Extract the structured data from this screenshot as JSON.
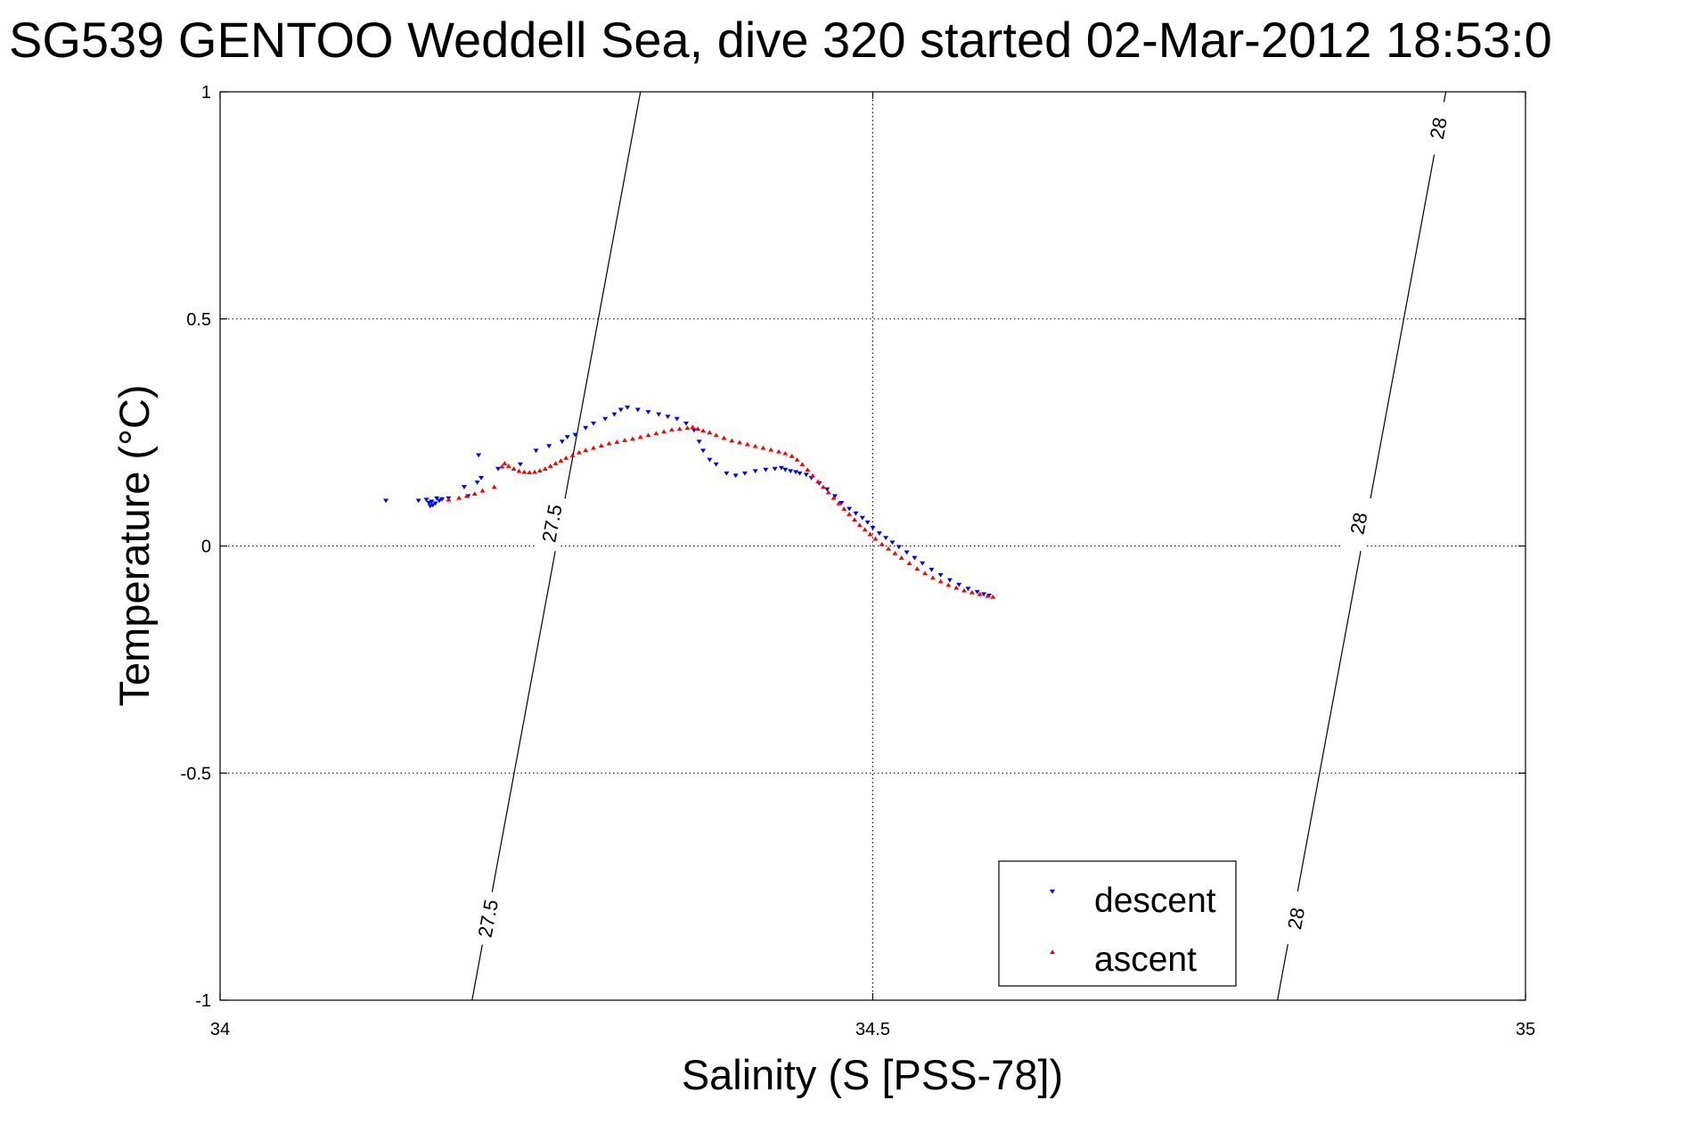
{
  "chart_data": {
    "type": "scatter",
    "title": "SG539 GENTOO Weddell Sea, dive 320 started 02-Mar-2012 18:53:0",
    "xlabel": "Salinity (S [PSS-78])",
    "ylabel": "Temperature (°C)",
    "xlim": [
      34,
      35
    ],
    "ylim": [
      -1,
      1
    ],
    "xticks": [
      34,
      34.5,
      35
    ],
    "xtick_labels": [
      "34",
      "34.5",
      "35"
    ],
    "yticks": [
      -1,
      -0.5,
      0,
      0.5,
      1
    ],
    "ytick_labels": [
      "-1",
      "-0.5",
      "0",
      "0.5",
      "1"
    ],
    "grid": true,
    "legend_position": "bottom-right",
    "colors": {
      "descent": "#0000ff",
      "ascent": "#ff0000",
      "contour": "#000000"
    },
    "series": [
      {
        "name": "descent",
        "marker": "triangle-down",
        "points": [
          [
            34.127,
            0.1
          ],
          [
            34.152,
            0.1
          ],
          [
            34.158,
            0.102
          ],
          [
            34.16,
            0.095
          ],
          [
            34.162,
            0.098
          ],
          [
            34.163,
            0.09
          ],
          [
            34.165,
            0.094
          ],
          [
            34.166,
            0.105
          ],
          [
            34.168,
            0.1
          ],
          [
            34.161,
            0.088
          ],
          [
            34.17,
            0.103
          ],
          [
            34.175,
            0.105
          ],
          [
            34.19,
            0.11
          ],
          [
            34.187,
            0.13
          ],
          [
            34.197,
            0.14
          ],
          [
            34.2,
            0.15
          ],
          [
            34.198,
            0.2
          ],
          [
            34.213,
            0.17
          ],
          [
            34.23,
            0.18
          ],
          [
            34.242,
            0.21
          ],
          [
            34.252,
            0.22
          ],
          [
            34.262,
            0.23
          ],
          [
            34.266,
            0.24
          ],
          [
            34.272,
            0.245
          ],
          [
            34.28,
            0.26
          ],
          [
            34.286,
            0.27
          ],
          [
            34.295,
            0.28
          ],
          [
            34.302,
            0.29
          ],
          [
            34.307,
            0.3
          ],
          [
            34.312,
            0.305
          ],
          [
            34.32,
            0.3
          ],
          [
            34.328,
            0.295
          ],
          [
            34.336,
            0.29
          ],
          [
            34.343,
            0.285
          ],
          [
            34.35,
            0.28
          ],
          [
            34.357,
            0.27
          ],
          [
            34.363,
            0.255
          ],
          [
            34.367,
            0.23
          ],
          [
            34.37,
            0.21
          ],
          [
            34.375,
            0.19
          ],
          [
            34.38,
            0.18
          ],
          [
            34.388,
            0.16
          ],
          [
            34.395,
            0.155
          ],
          [
            34.402,
            0.16
          ],
          [
            34.41,
            0.165
          ],
          [
            34.418,
            0.168
          ],
          [
            34.425,
            0.17
          ],
          [
            34.43,
            0.172
          ],
          [
            34.433,
            0.168
          ],
          [
            34.437,
            0.165
          ],
          [
            34.441,
            0.163
          ],
          [
            34.444,
            0.16
          ],
          [
            34.449,
            0.157
          ],
          [
            34.453,
            0.15
          ],
          [
            34.459,
            0.138
          ],
          [
            34.465,
            0.125
          ],
          [
            34.471,
            0.11
          ],
          [
            34.476,
            0.095
          ],
          [
            34.482,
            0.082
          ],
          [
            34.487,
            0.072
          ],
          [
            34.492,
            0.062
          ],
          [
            34.496,
            0.052
          ],
          [
            34.5,
            0.04
          ],
          [
            34.505,
            0.028
          ],
          [
            34.51,
            0.018
          ],
          [
            34.515,
            0.008
          ],
          [
            34.52,
            -0.002
          ],
          [
            34.526,
            -0.014
          ],
          [
            34.532,
            -0.026
          ],
          [
            34.538,
            -0.038
          ],
          [
            34.545,
            -0.052
          ],
          [
            34.552,
            -0.064
          ],
          [
            34.559,
            -0.075
          ],
          [
            34.566,
            -0.085
          ],
          [
            34.573,
            -0.094
          ],
          [
            34.58,
            -0.101
          ],
          [
            34.585,
            -0.106
          ],
          [
            34.589,
            -0.109
          ]
        ]
      },
      {
        "name": "ascent",
        "marker": "triangle-up",
        "points": [
          [
            34.175,
            0.102
          ],
          [
            34.183,
            0.106
          ],
          [
            34.189,
            0.11
          ],
          [
            34.195,
            0.115
          ],
          [
            34.201,
            0.122
          ],
          [
            34.21,
            0.13
          ],
          [
            34.216,
            0.175
          ],
          [
            34.218,
            0.182
          ],
          [
            34.221,
            0.176
          ],
          [
            34.225,
            0.17
          ],
          [
            34.229,
            0.165
          ],
          [
            34.233,
            0.163
          ],
          [
            34.237,
            0.162
          ],
          [
            34.241,
            0.163
          ],
          [
            34.245,
            0.166
          ],
          [
            34.249,
            0.17
          ],
          [
            34.253,
            0.176
          ],
          [
            34.257,
            0.182
          ],
          [
            34.261,
            0.188
          ],
          [
            34.265,
            0.194
          ],
          [
            34.27,
            0.2
          ],
          [
            34.275,
            0.206
          ],
          [
            34.28,
            0.211
          ],
          [
            34.286,
            0.216
          ],
          [
            34.292,
            0.221
          ],
          [
            34.298,
            0.226
          ],
          [
            34.304,
            0.229
          ],
          [
            34.31,
            0.233
          ],
          [
            34.316,
            0.236
          ],
          [
            34.322,
            0.24
          ],
          [
            34.328,
            0.244
          ],
          [
            34.334,
            0.248
          ],
          [
            34.34,
            0.252
          ],
          [
            34.346,
            0.256
          ],
          [
            34.352,
            0.258
          ],
          [
            34.358,
            0.26
          ],
          [
            34.362,
            0.262
          ],
          [
            34.366,
            0.258
          ],
          [
            34.37,
            0.254
          ],
          [
            34.375,
            0.25
          ],
          [
            34.38,
            0.244
          ],
          [
            34.386,
            0.238
          ],
          [
            34.392,
            0.232
          ],
          [
            34.398,
            0.228
          ],
          [
            34.404,
            0.224
          ],
          [
            34.41,
            0.22
          ],
          [
            34.416,
            0.216
          ],
          [
            34.422,
            0.212
          ],
          [
            34.428,
            0.208
          ],
          [
            34.433,
            0.204
          ],
          [
            34.438,
            0.198
          ],
          [
            34.442,
            0.19
          ],
          [
            34.446,
            0.18
          ],
          [
            34.45,
            0.168
          ],
          [
            34.454,
            0.155
          ],
          [
            34.458,
            0.142
          ],
          [
            34.462,
            0.13
          ],
          [
            34.466,
            0.118
          ],
          [
            34.47,
            0.106
          ],
          [
            34.474,
            0.094
          ],
          [
            34.478,
            0.082
          ],
          [
            34.482,
            0.07
          ],
          [
            34.486,
            0.058
          ],
          [
            34.49,
            0.046
          ],
          [
            34.494,
            0.036
          ],
          [
            34.498,
            0.026
          ],
          [
            34.502,
            0.016
          ],
          [
            34.507,
            0.004
          ],
          [
            34.512,
            -0.006
          ],
          [
            34.517,
            -0.016
          ],
          [
            34.522,
            -0.026
          ],
          [
            34.528,
            -0.038
          ],
          [
            34.534,
            -0.05
          ],
          [
            34.54,
            -0.06
          ],
          [
            34.546,
            -0.07
          ],
          [
            34.552,
            -0.078
          ],
          [
            34.558,
            -0.086
          ],
          [
            34.564,
            -0.092
          ],
          [
            34.57,
            -0.098
          ],
          [
            34.576,
            -0.102
          ],
          [
            34.582,
            -0.106
          ],
          [
            34.588,
            -0.11
          ],
          [
            34.592,
            -0.112
          ]
        ]
      }
    ],
    "contours": [
      {
        "level": 27.5,
        "label": "27.5",
        "points": [
          [
            34.193,
            -1.0
          ],
          [
            34.322,
            1.0
          ]
        ],
        "label_positions": [
          [
            34.205,
            -0.82
          ],
          [
            34.254,
            0.05
          ]
        ]
      },
      {
        "level": 28,
        "label": "28",
        "points": [
          [
            34.81,
            -1.0
          ],
          [
            34.939,
            1.0
          ]
        ],
        "label_positions": [
          [
            34.824,
            -0.82
          ],
          [
            34.872,
            0.05
          ],
          [
            34.933,
            0.92
          ]
        ]
      }
    ]
  }
}
